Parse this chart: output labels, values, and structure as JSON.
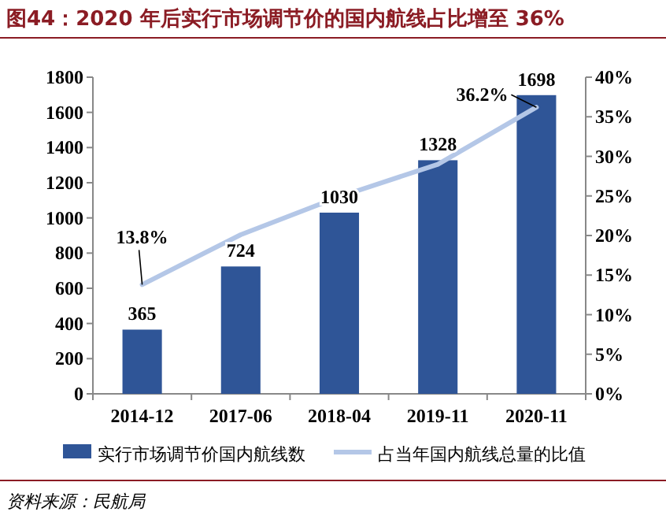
{
  "chart_data": {
    "type": "bar",
    "title": "图44：2020 年后实行市场调节价的国内航线占比增至 36%",
    "categories": [
      "2014-12",
      "2017-06",
      "2018-04",
      "2019-11",
      "2020-11"
    ],
    "series": [
      {
        "name": "实行市场调节价国内航线数",
        "color": "#2f5597",
        "values": [
          365,
          724,
          1030,
          1328,
          1698
        ],
        "value_labels": [
          "365",
          "724",
          "1030",
          "1328",
          "1698"
        ]
      },
      {
        "name": "占当年国内航线总量的比值",
        "type": "line",
        "axis": "y2",
        "color": "#b4c7e7",
        "values": [
          13.8,
          20.1,
          24.9,
          29.0,
          36.2
        ],
        "value_labels": [
          "13.8%",
          null,
          null,
          null,
          "36.2%"
        ]
      }
    ],
    "ylim": [
      0,
      1800
    ],
    "yticks": [
      0,
      200,
      400,
      600,
      800,
      1000,
      1200,
      1400,
      1600,
      1800
    ],
    "y2lim": [
      0,
      40
    ],
    "y2ticks": [
      {
        "value": 0,
        "label": "0%"
      },
      {
        "value": 5,
        "label": "5%"
      },
      {
        "value": 10,
        "label": "10%"
      },
      {
        "value": 15,
        "label": "15%"
      },
      {
        "value": 20,
        "label": "20%"
      },
      {
        "value": 25,
        "label": "25%"
      },
      {
        "value": 30,
        "label": "30%"
      },
      {
        "value": 35,
        "label": "35%"
      },
      {
        "value": 40,
        "label": "40%"
      }
    ],
    "legend": "bottom",
    "grid": false,
    "annotations": [
      "资料来源：民航局"
    ]
  }
}
